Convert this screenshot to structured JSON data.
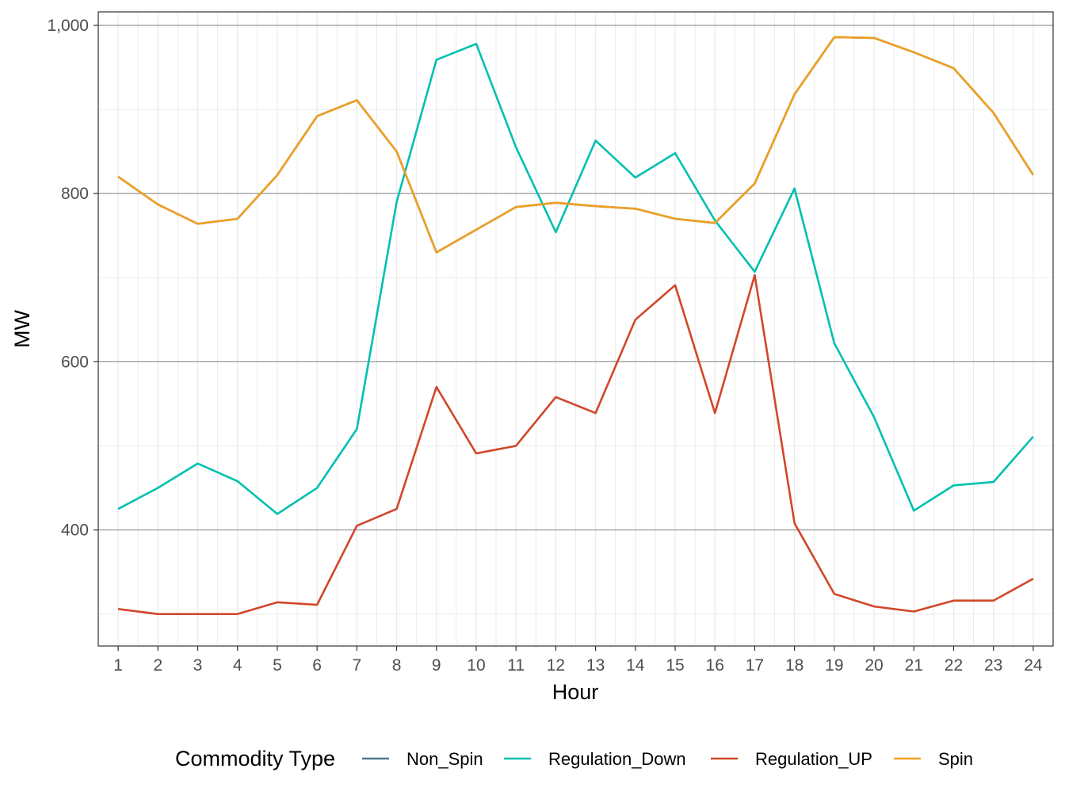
{
  "chart_data": {
    "type": "line",
    "xlabel": "Hour",
    "ylabel": "MW",
    "x": [
      1,
      2,
      3,
      4,
      5,
      6,
      7,
      8,
      9,
      10,
      11,
      12,
      13,
      14,
      15,
      16,
      17,
      18,
      19,
      20,
      21,
      22,
      23,
      24
    ],
    "x_tick_labels": [
      "1",
      "2",
      "3",
      "4",
      "5",
      "6",
      "7",
      "8",
      "9",
      "10",
      "11",
      "12",
      "13",
      "14",
      "15",
      "16",
      "17",
      "18",
      "19",
      "20",
      "21",
      "22",
      "23",
      "24"
    ],
    "y_tick_values": [
      400,
      600,
      800,
      1000
    ],
    "y_tick_labels": [
      "400",
      "600",
      "800",
      "1,000"
    ],
    "ylim": [
      262,
      1016
    ],
    "xlim": [
      0.5,
      24.5
    ],
    "grid": true,
    "legend": {
      "title": "Commodity Type",
      "position": "bottom"
    },
    "series": [
      {
        "name": "Non_Spin",
        "color": "#4f7a8c",
        "values": [
          820,
          787,
          764,
          770,
          822,
          892,
          911,
          850,
          730,
          757,
          784,
          789,
          785,
          782,
          770,
          765,
          812,
          918,
          986,
          985,
          968,
          949,
          896,
          822
        ]
      },
      {
        "name": "Regulation_Down",
        "color": "#00c0b0",
        "values": [
          425,
          450,
          479,
          458,
          419,
          450,
          520,
          790,
          959,
          978,
          855,
          754,
          863,
          819,
          848,
          768,
          707,
          806,
          622,
          534,
          423,
          453,
          457,
          511
        ]
      },
      {
        "name": "Regulation_UP",
        "color": "#d1472a",
        "values": [
          306,
          300,
          300,
          300,
          314,
          311,
          405,
          425,
          570,
          491,
          500,
          558,
          539,
          650,
          691,
          539,
          703,
          408,
          324,
          309,
          303,
          316,
          316,
          342
        ]
      },
      {
        "name": "Spin",
        "color": "#f0a020",
        "values": [
          820,
          787,
          764,
          770,
          822,
          892,
          911,
          850,
          730,
          757,
          784,
          789,
          785,
          782,
          770,
          765,
          812,
          918,
          986,
          985,
          968,
          949,
          896,
          822
        ]
      }
    ]
  }
}
